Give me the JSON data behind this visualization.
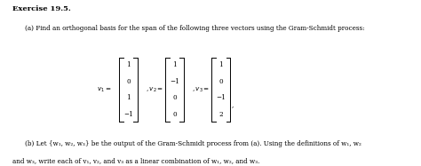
{
  "background_color": "#ffffff",
  "title": "Exercise 19.5.",
  "part_a_text": "(a) Find an orthogonal basis for the span of the following three vectors using the Gram-Schmidt process:",
  "v1_entries": [
    "1",
    "0",
    "1",
    "−1"
  ],
  "v2_entries": [
    "1",
    "−1",
    "0",
    "0"
  ],
  "v3_entries": [
    "1",
    "0",
    "−1",
    "2"
  ],
  "part_b_text": "(b) Let {w₁, w₂, w₃} be the output of the Gram-Schmidt process from (a). Using the definitions of w₁, w₂",
  "part_b_text2": "and w₃, write each of v₁, v₂, and v₃ as a linear combination of w₁, w₂, and w₃.",
  "title_fontsize": 6.0,
  "body_fontsize": 5.2,
  "matrix_fontsize": 5.2
}
